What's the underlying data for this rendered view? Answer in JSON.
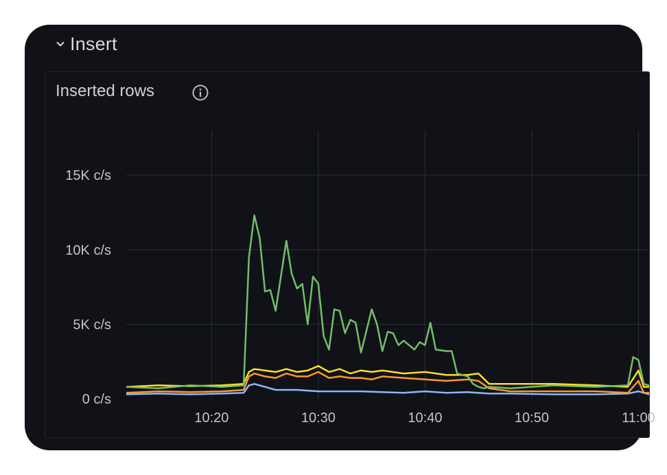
{
  "row": {
    "title": "Insert"
  },
  "panel": {
    "title": "Inserted rows"
  },
  "icons": {
    "collapse": "chevron-down-icon",
    "info": "info-circle-icon"
  },
  "colors": {
    "green": "#73bf69",
    "yellow": "#fade2a",
    "orange": "#ff9830",
    "blue": "#8ab8ff",
    "background": "#111217",
    "grid": "#2c2f36"
  },
  "chart_data": {
    "type": "line",
    "x_unit": "time (HH:MM)",
    "xlim": [
      "10:12",
      "11:01"
    ],
    "ylim": [
      0,
      18000
    ],
    "y_ticks": [
      0,
      5000,
      10000,
      15000
    ],
    "y_tick_labels": [
      "0 c/s",
      "5K c/s",
      "10K c/s",
      "15K c/s"
    ],
    "x_ticks": [
      "10:20",
      "10:30",
      "10:40",
      "10:50",
      "11:00"
    ],
    "legend": "none",
    "grid": true,
    "series": [
      {
        "color": "#73bf69",
        "x": [
          "10:12",
          "10:15",
          "10:18",
          "10:21",
          "10:23",
          "10:23:30",
          "10:24",
          "10:24:30",
          "10:25",
          "10:25:30",
          "10:26",
          "10:27",
          "10:27:30",
          "10:28",
          "10:28:30",
          "10:29",
          "10:29:30",
          "10:30",
          "10:30:30",
          "10:31",
          "10:31:30",
          "10:32",
          "10:32:30",
          "10:33",
          "10:33:30",
          "10:34",
          "10:35",
          "10:35:30",
          "10:36",
          "10:36:30",
          "10:37",
          "10:37:30",
          "10:38",
          "10:39",
          "10:39:30",
          "10:40",
          "10:40:30",
          "10:41",
          "10:42",
          "10:42:30",
          "10:43",
          "10:44",
          "10:44:30",
          "10:45",
          "10:45:30",
          "10:46",
          "10:48",
          "10:52",
          "10:56",
          "10:59",
          "10:59:30",
          "11:00",
          "11:00:30",
          "11:01"
        ],
        "values": [
          800,
          700,
          900,
          800,
          900,
          9500,
          12300,
          10800,
          7200,
          7300,
          5900,
          10600,
          8400,
          7400,
          7700,
          5000,
          8200,
          7700,
          4200,
          3300,
          6000,
          5900,
          4400,
          5300,
          5100,
          3100,
          6000,
          5000,
          3200,
          4500,
          4400,
          3600,
          3900,
          3300,
          3800,
          3600,
          5100,
          3300,
          3200,
          3200,
          1700,
          1500,
          1000,
          800,
          700,
          800,
          700,
          900,
          800,
          900,
          2800,
          2600,
          1000,
          900
        ]
      },
      {
        "color": "#fade2a",
        "x": [
          "10:12",
          "10:15",
          "10:18",
          "10:21",
          "10:23",
          "10:23:30",
          "10:24",
          "10:25",
          "10:26",
          "10:27",
          "10:28",
          "10:29",
          "10:30",
          "10:31",
          "10:32",
          "10:33",
          "10:34",
          "10:35",
          "10:36",
          "10:38",
          "10:40",
          "10:42",
          "10:44",
          "10:45",
          "10:46",
          "10:48",
          "10:52",
          "10:56",
          "10:59",
          "11:00",
          "11:00:30",
          "11:01"
        ],
        "values": [
          800,
          900,
          850,
          900,
          1000,
          1800,
          2000,
          1900,
          1800,
          2000,
          1800,
          1900,
          2200,
          1800,
          2000,
          1700,
          1900,
          1800,
          1900,
          1700,
          1800,
          1600,
          1600,
          1700,
          1000,
          1000,
          1000,
          900,
          800,
          1900,
          800,
          800
        ]
      },
      {
        "color": "#ff9830",
        "x": [
          "10:12",
          "10:15",
          "10:18",
          "10:21",
          "10:23",
          "10:23:30",
          "10:24",
          "10:25",
          "10:26",
          "10:27",
          "10:28",
          "10:29",
          "10:30",
          "10:31",
          "10:32",
          "10:33",
          "10:34",
          "10:35",
          "10:36",
          "10:38",
          "10:40",
          "10:42",
          "10:44",
          "10:45",
          "10:46",
          "10:48",
          "10:52",
          "10:56",
          "10:59",
          "11:00",
          "11:00:30",
          "11:01"
        ],
        "values": [
          400,
          500,
          450,
          500,
          600,
          1500,
          1700,
          1500,
          1400,
          1700,
          1500,
          1500,
          1800,
          1400,
          1500,
          1400,
          1400,
          1300,
          1500,
          1400,
          1300,
          1200,
          1300,
          1200,
          700,
          500,
          500,
          500,
          400,
          1200,
          400,
          400
        ]
      },
      {
        "color": "#8ab8ff",
        "x": [
          "10:12",
          "10:15",
          "10:18",
          "10:21",
          "10:23",
          "10:23:30",
          "10:24",
          "10:25",
          "10:26",
          "10:28",
          "10:30",
          "10:32",
          "10:34",
          "10:36",
          "10:38",
          "10:40",
          "10:42",
          "10:44",
          "10:46",
          "10:48",
          "10:52",
          "10:56",
          "10:59",
          "11:00",
          "11:01"
        ],
        "values": [
          300,
          350,
          300,
          350,
          400,
          900,
          1000,
          800,
          600,
          600,
          500,
          500,
          500,
          450,
          400,
          500,
          400,
          450,
          350,
          350,
          300,
          300,
          350,
          500,
          300
        ]
      }
    ]
  }
}
